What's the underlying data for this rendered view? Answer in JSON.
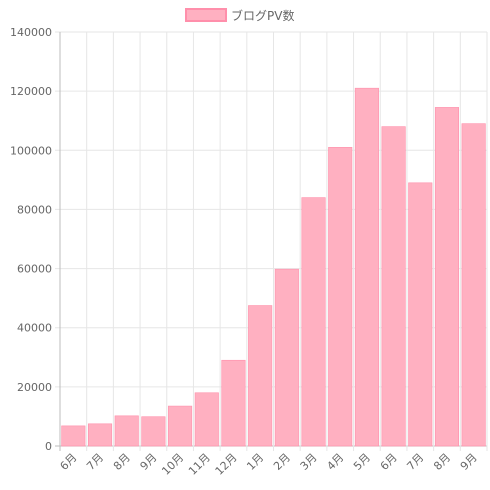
{
  "chart_data": {
    "type": "bar",
    "legend": {
      "position": "top",
      "label": "ブログPV数"
    },
    "series": [
      {
        "name": "ブログPV数",
        "color": "#ffb0c1",
        "border_color": "#ff8fab",
        "values": [
          6800,
          7500,
          10200,
          9900,
          13500,
          18000,
          29000,
          47500,
          59800,
          84000,
          101000,
          121000,
          108000,
          89000,
          114500,
          109000
        ]
      }
    ],
    "categories": [
      "6月",
      "7月",
      "8月",
      "9月",
      "10月",
      "11月",
      "12月",
      "1月",
      "2月",
      "3月",
      "4月",
      "5月",
      "6月",
      "7月",
      "8月",
      "9月"
    ],
    "ylim": [
      0,
      140000
    ],
    "yticks": [
      0,
      20000,
      40000,
      60000,
      80000,
      100000,
      120000,
      140000
    ],
    "grid": true,
    "xlabel": "",
    "ylabel": "",
    "title": ""
  }
}
